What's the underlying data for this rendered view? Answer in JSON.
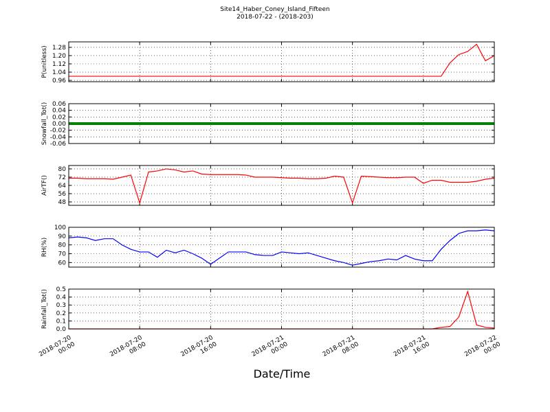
{
  "title": "Site14_Haber_Coney_Island_Fifteen",
  "subtitle": "2018-07-22 - (2018-203)",
  "xlabel": "Date/Time",
  "chart_data": [
    {
      "type": "line",
      "ylabel": "P(unitless)",
      "x": [
        "2018-07-20 00:00",
        "2018-07-20 01:00",
        "2018-07-20 02:00",
        "2018-07-20 03:00",
        "2018-07-20 04:00",
        "2018-07-20 05:00",
        "2018-07-20 06:00",
        "2018-07-20 07:00",
        "2018-07-20 08:00",
        "2018-07-20 09:00",
        "2018-07-20 10:00",
        "2018-07-20 11:00",
        "2018-07-20 12:00",
        "2018-07-20 13:00",
        "2018-07-20 14:00",
        "2018-07-20 15:00",
        "2018-07-20 16:00",
        "2018-07-20 17:00",
        "2018-07-20 18:00",
        "2018-07-20 19:00",
        "2018-07-20 20:00",
        "2018-07-20 21:00",
        "2018-07-20 22:00",
        "2018-07-20 23:00",
        "2018-07-21 00:00",
        "2018-07-21 01:00",
        "2018-07-21 02:00",
        "2018-07-21 03:00",
        "2018-07-21 04:00",
        "2018-07-21 05:00",
        "2018-07-21 06:00",
        "2018-07-21 07:00",
        "2018-07-21 08:00",
        "2018-07-21 09:00",
        "2018-07-21 10:00",
        "2018-07-21 11:00",
        "2018-07-21 12:00",
        "2018-07-21 13:00",
        "2018-07-21 14:00",
        "2018-07-21 15:00",
        "2018-07-21 16:00",
        "2018-07-21 17:00",
        "2018-07-21 18:00",
        "2018-07-21 19:00",
        "2018-07-21 20:00",
        "2018-07-21 21:00",
        "2018-07-21 22:00",
        "2018-07-21 23:00",
        "2018-07-22 00:00"
      ],
      "series": [
        {
          "color": "#ff0000",
          "values": [
            1.0,
            1.0,
            1.0,
            1.0,
            1.0,
            1.0,
            1.0,
            1.0,
            1.0,
            1.0,
            1.0,
            1.0,
            1.0,
            1.0,
            1.0,
            1.0,
            1.0,
            1.0,
            1.0,
            1.0,
            1.0,
            1.0,
            1.0,
            1.0,
            1.0,
            1.0,
            1.0,
            1.0,
            1.0,
            1.0,
            1.0,
            1.0,
            1.0,
            1.0,
            1.0,
            1.0,
            1.0,
            1.0,
            1.0,
            1.0,
            1.0,
            1.0,
            1.0,
            1.13,
            1.21,
            1.24,
            1.31,
            1.15,
            1.2
          ]
        }
      ],
      "ylim": [
        0.947,
        1.333
      ],
      "yticks": [
        0.96,
        1.04,
        1.12,
        {
          "value": 1.2,
          "label": "1.20"
        },
        1.28
      ],
      "xlim": [
        "2018-07-20 00:00",
        "2018-07-22 00:00"
      ],
      "xticks": [
        "2018-07-20 00:00",
        "2018-07-20 08:00",
        "2018-07-20 16:00",
        "2018-07-21 00:00",
        "2018-07-21 08:00",
        "2018-07-21 16:00",
        "2018-07-22 00:00"
      ],
      "grid": true
    },
    {
      "type": "line",
      "ylabel": "Snowfall_Tot()",
      "x": [
        "2018-07-20 00:00",
        "2018-07-20 01:00",
        "2018-07-20 02:00",
        "2018-07-20 03:00",
        "2018-07-20 04:00",
        "2018-07-20 05:00",
        "2018-07-20 06:00",
        "2018-07-20 07:00",
        "2018-07-20 08:00",
        "2018-07-20 09:00",
        "2018-07-20 10:00",
        "2018-07-20 11:00",
        "2018-07-20 12:00",
        "2018-07-20 13:00",
        "2018-07-20 14:00",
        "2018-07-20 15:00",
        "2018-07-20 16:00",
        "2018-07-20 17:00",
        "2018-07-20 18:00",
        "2018-07-20 19:00",
        "2018-07-20 20:00",
        "2018-07-20 21:00",
        "2018-07-20 22:00",
        "2018-07-20 23:00",
        "2018-07-21 00:00",
        "2018-07-21 01:00",
        "2018-07-21 02:00",
        "2018-07-21 03:00",
        "2018-07-21 04:00",
        "2018-07-21 05:00",
        "2018-07-21 06:00",
        "2018-07-21 07:00",
        "2018-07-21 08:00",
        "2018-07-21 09:00",
        "2018-07-21 10:00",
        "2018-07-21 11:00",
        "2018-07-21 12:00",
        "2018-07-21 13:00",
        "2018-07-21 14:00",
        "2018-07-21 15:00",
        "2018-07-21 16:00",
        "2018-07-21 17:00",
        "2018-07-21 18:00",
        "2018-07-21 19:00",
        "2018-07-21 20:00",
        "2018-07-21 21:00",
        "2018-07-21 22:00",
        "2018-07-21 23:00",
        "2018-07-22 00:00"
      ],
      "series": [
        {
          "color": "#008000",
          "values": [
            0,
            0,
            0,
            0,
            0,
            0,
            0,
            0,
            0,
            0,
            0,
            0,
            0,
            0,
            0,
            0,
            0,
            0,
            0,
            0,
            0,
            0,
            0,
            0,
            0,
            0,
            0,
            0,
            0,
            0,
            0,
            0,
            0,
            0,
            0,
            0,
            0,
            0,
            0,
            0,
            0,
            0,
            0,
            0,
            0,
            0,
            0,
            0,
            0
          ]
        }
      ],
      "ylim": [
        -0.06,
        0.06
      ],
      "yticks": [
        -0.06,
        -0.04,
        -0.02,
        {
          "value": 0,
          "label": "0.00"
        },
        0.02,
        0.04,
        0.06
      ],
      "xlim": [
        "2018-07-20 00:00",
        "2018-07-22 00:00"
      ],
      "xticks": [
        "2018-07-20 00:00",
        "2018-07-20 08:00",
        "2018-07-20 16:00",
        "2018-07-21 00:00",
        "2018-07-21 08:00",
        "2018-07-21 16:00",
        "2018-07-22 00:00"
      ],
      "grid": true
    },
    {
      "type": "line",
      "ylabel": "AirTF()",
      "x": [
        "2018-07-20 00:00",
        "2018-07-20 01:00",
        "2018-07-20 02:00",
        "2018-07-20 03:00",
        "2018-07-20 04:00",
        "2018-07-20 05:00",
        "2018-07-20 06:00",
        "2018-07-20 07:00",
        "2018-07-20 08:00",
        "2018-07-20 09:00",
        "2018-07-20 10:00",
        "2018-07-20 11:00",
        "2018-07-20 12:00",
        "2018-07-20 13:00",
        "2018-07-20 14:00",
        "2018-07-20 15:00",
        "2018-07-20 16:00",
        "2018-07-20 17:00",
        "2018-07-20 18:00",
        "2018-07-20 19:00",
        "2018-07-20 20:00",
        "2018-07-20 21:00",
        "2018-07-20 22:00",
        "2018-07-20 23:00",
        "2018-07-21 00:00",
        "2018-07-21 01:00",
        "2018-07-21 02:00",
        "2018-07-21 03:00",
        "2018-07-21 04:00",
        "2018-07-21 05:00",
        "2018-07-21 06:00",
        "2018-07-21 07:00",
        "2018-07-21 08:00",
        "2018-07-21 09:00",
        "2018-07-21 10:00",
        "2018-07-21 11:00",
        "2018-07-21 12:00",
        "2018-07-21 13:00",
        "2018-07-21 14:00",
        "2018-07-21 15:00",
        "2018-07-21 16:00",
        "2018-07-21 17:00",
        "2018-07-21 18:00",
        "2018-07-21 19:00",
        "2018-07-21 20:00",
        "2018-07-21 21:00",
        "2018-07-21 22:00",
        "2018-07-21 23:00",
        "2018-07-22 00:00"
      ],
      "series": [
        {
          "color": "#ff0000",
          "values": [
            71,
            71,
            70.5,
            70.5,
            70.5,
            70,
            72,
            74,
            47,
            77,
            78,
            80,
            79,
            77,
            78,
            75,
            74.5,
            74.5,
            74.5,
            74.5,
            74,
            72,
            72,
            72,
            71.5,
            71,
            71,
            70.5,
            70.5,
            71,
            73,
            72,
            47,
            73,
            72.5,
            72,
            71.5,
            71.5,
            72,
            72,
            66,
            69,
            69,
            67,
            67,
            67,
            68,
            70,
            71
          ]
        }
      ],
      "ylim": [
        44.7,
        83.3
      ],
      "yticks": [
        48,
        56,
        64,
        72,
        80
      ],
      "xlim": [
        "2018-07-20 00:00",
        "2018-07-22 00:00"
      ],
      "xticks": [
        "2018-07-20 00:00",
        "2018-07-20 08:00",
        "2018-07-20 16:00",
        "2018-07-21 00:00",
        "2018-07-21 08:00",
        "2018-07-21 16:00",
        "2018-07-22 00:00"
      ],
      "grid": true
    },
    {
      "type": "line",
      "ylabel": "RH(%)",
      "x": [
        "2018-07-20 00:00",
        "2018-07-20 01:00",
        "2018-07-20 02:00",
        "2018-07-20 03:00",
        "2018-07-20 04:00",
        "2018-07-20 05:00",
        "2018-07-20 06:00",
        "2018-07-20 07:00",
        "2018-07-20 08:00",
        "2018-07-20 09:00",
        "2018-07-20 10:00",
        "2018-07-20 11:00",
        "2018-07-20 12:00",
        "2018-07-20 13:00",
        "2018-07-20 14:00",
        "2018-07-20 15:00",
        "2018-07-20 16:00",
        "2018-07-20 17:00",
        "2018-07-20 18:00",
        "2018-07-20 19:00",
        "2018-07-20 20:00",
        "2018-07-20 21:00",
        "2018-07-20 22:00",
        "2018-07-20 23:00",
        "2018-07-21 00:00",
        "2018-07-21 01:00",
        "2018-07-21 02:00",
        "2018-07-21 03:00",
        "2018-07-21 04:00",
        "2018-07-21 05:00",
        "2018-07-21 06:00",
        "2018-07-21 07:00",
        "2018-07-21 08:00",
        "2018-07-21 09:00",
        "2018-07-21 10:00",
        "2018-07-21 11:00",
        "2018-07-21 12:00",
        "2018-07-21 13:00",
        "2018-07-21 14:00",
        "2018-07-21 15:00",
        "2018-07-21 16:00",
        "2018-07-21 17:00",
        "2018-07-21 18:00",
        "2018-07-21 19:00",
        "2018-07-21 20:00",
        "2018-07-21 21:00",
        "2018-07-21 22:00",
        "2018-07-21 23:00",
        "2018-07-22 00:00"
      ],
      "series": [
        {
          "color": "#0000ff",
          "values": [
            88,
            89,
            88,
            85,
            87,
            87,
            80,
            75,
            72,
            72,
            66,
            74,
            71,
            74,
            70,
            65,
            58,
            65,
            72,
            72,
            72,
            69,
            68,
            68,
            72,
            71,
            70,
            71,
            68,
            65,
            62,
            60,
            57,
            59,
            61,
            62,
            64,
            63,
            68,
            64,
            62,
            62,
            75,
            85,
            93,
            96,
            96,
            97,
            96
          ]
        }
      ],
      "ylim": [
        54.8,
        100
      ],
      "yticks": [
        60,
        70,
        80,
        90,
        100
      ],
      "xlim": [
        "2018-07-20 00:00",
        "2018-07-22 00:00"
      ],
      "xticks": [
        "2018-07-20 00:00",
        "2018-07-20 08:00",
        "2018-07-20 16:00",
        "2018-07-21 00:00",
        "2018-07-21 08:00",
        "2018-07-21 16:00",
        "2018-07-22 00:00"
      ],
      "grid": true
    },
    {
      "type": "line",
      "ylabel": "Rainfall_Tot()",
      "x": [
        "2018-07-20 00:00",
        "2018-07-20 01:00",
        "2018-07-20 02:00",
        "2018-07-20 03:00",
        "2018-07-20 04:00",
        "2018-07-20 05:00",
        "2018-07-20 06:00",
        "2018-07-20 07:00",
        "2018-07-20 08:00",
        "2018-07-20 09:00",
        "2018-07-20 10:00",
        "2018-07-20 11:00",
        "2018-07-20 12:00",
        "2018-07-20 13:00",
        "2018-07-20 14:00",
        "2018-07-20 15:00",
        "2018-07-20 16:00",
        "2018-07-20 17:00",
        "2018-07-20 18:00",
        "2018-07-20 19:00",
        "2018-07-20 20:00",
        "2018-07-20 21:00",
        "2018-07-20 22:00",
        "2018-07-20 23:00",
        "2018-07-21 00:00",
        "2018-07-21 01:00",
        "2018-07-21 02:00",
        "2018-07-21 03:00",
        "2018-07-21 04:00",
        "2018-07-21 05:00",
        "2018-07-21 06:00",
        "2018-07-21 07:00",
        "2018-07-21 08:00",
        "2018-07-21 09:00",
        "2018-07-21 10:00",
        "2018-07-21 11:00",
        "2018-07-21 12:00",
        "2018-07-21 13:00",
        "2018-07-21 14:00",
        "2018-07-21 15:00",
        "2018-07-21 16:00",
        "2018-07-21 17:00",
        "2018-07-21 18:00",
        "2018-07-21 19:00",
        "2018-07-21 20:00",
        "2018-07-21 21:00",
        "2018-07-21 22:00",
        "2018-07-21 23:00",
        "2018-07-22 00:00"
      ],
      "series": [
        {
          "color": "#ff0000",
          "values": [
            0,
            0,
            0,
            0,
            0,
            0,
            0,
            0,
            0,
            0,
            0,
            0,
            0,
            0,
            0,
            0,
            0,
            0,
            0,
            0,
            0,
            0,
            0,
            0,
            0,
            0,
            0,
            0,
            0,
            0,
            0,
            0,
            0,
            0,
            0,
            0,
            0,
            0,
            0,
            0,
            0,
            0,
            0.02,
            0.03,
            0.15,
            0.47,
            0.05,
            0.02,
            0.01
          ]
        }
      ],
      "ylim": [
        0,
        0.5
      ],
      "yticks": [
        {
          "value": 0,
          "label": "0.0"
        },
        0.1,
        0.2,
        0.3,
        0.4,
        0.5
      ],
      "xlim": [
        "2018-07-20 00:00",
        "2018-07-22 00:00"
      ],
      "xticks": [
        "2018-07-20 00:00",
        "2018-07-20 08:00",
        "2018-07-20 16:00",
        "2018-07-21 00:00",
        "2018-07-21 08:00",
        "2018-07-21 16:00",
        "2018-07-22 00:00"
      ],
      "grid": true
    }
  ]
}
